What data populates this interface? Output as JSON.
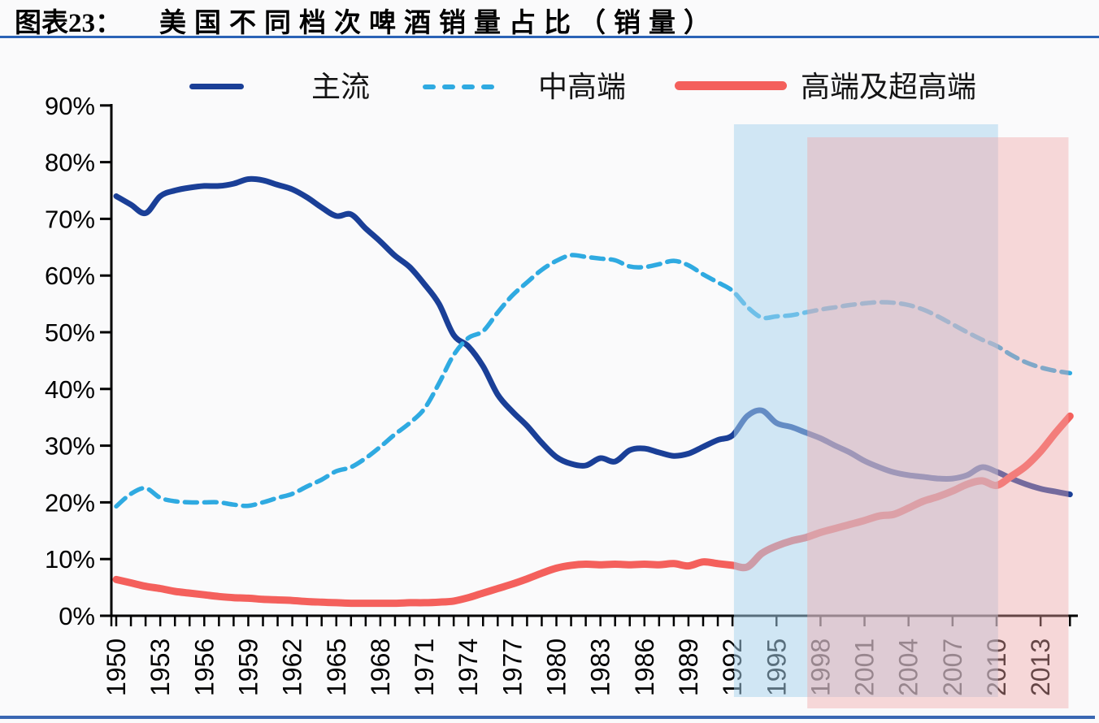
{
  "page": {
    "background": "#fafafb"
  },
  "header": {
    "prefix": "图表23：",
    "title": "美国不同档次啤酒销量占比（销量）",
    "underline_color": "#2b63b6"
  },
  "footer": {
    "rule_color": "#3a67b3"
  },
  "chart_data": {
    "type": "line",
    "title": "美国不同档次啤酒销量占比（销量）",
    "xlabel": "",
    "ylabel": "",
    "ylim": [
      0,
      90
    ],
    "grid": false,
    "legend_position": "top",
    "x_start": 1950,
    "x_end": 2015,
    "x_ticks": [
      1950,
      1953,
      1956,
      1959,
      1962,
      1965,
      1968,
      1971,
      1974,
      1977,
      1980,
      1983,
      1986,
      1989,
      1992,
      1995,
      1998,
      2001,
      2004,
      2007,
      2010,
      2013
    ],
    "y_tick_labels": [
      "0%",
      "10%",
      "20%",
      "30%",
      "40%",
      "50%",
      "60%",
      "70%",
      "80%",
      "90%"
    ],
    "series": [
      {
        "key": "mainstream",
        "name": "主流",
        "color": "#1a3f97",
        "style": "solid",
        "stroke_width": 7,
        "values": [
          74,
          72.5,
          71,
          74,
          75,
          75.5,
          75.8,
          75.8,
          76.2,
          77,
          76.8,
          76,
          75.2,
          73.8,
          72,
          70.5,
          70.8,
          68.3,
          66,
          63.5,
          61.5,
          58.5,
          55,
          49.5,
          47.5,
          44,
          39,
          36,
          33.5,
          30.5,
          28,
          26.8,
          26.5,
          27.8,
          27.2,
          29.2,
          29.5,
          28.8,
          28.2,
          28.6,
          29.8,
          31,
          31.8,
          35.2,
          36.2,
          34,
          33.3,
          32.3,
          31.3,
          30,
          28.8,
          27.3,
          26.2,
          25.3,
          24.8,
          24.5,
          24.2,
          24.2,
          24.8,
          26.2,
          25.4,
          24.2,
          23.2,
          22.4,
          21.9,
          21.4
        ]
      },
      {
        "key": "mid-high-end",
        "name": "中高端",
        "color": "#2faae1",
        "style": "dashed",
        "stroke_width": 5.5,
        "values": [
          19.3,
          21.5,
          22.5,
          20.8,
          20.2,
          20,
          20,
          20,
          19.6,
          19.4,
          20,
          20.8,
          21.5,
          22.8,
          24,
          25.5,
          26.2,
          27.8,
          29.8,
          32,
          34,
          36.5,
          41,
          46,
          49,
          50.2,
          53.5,
          56.5,
          58.8,
          61,
          62.6,
          63.6,
          63.3,
          63,
          62.7,
          61.6,
          61.5,
          62,
          62.6,
          61.8,
          60.2,
          58.8,
          57.3,
          54.5,
          52.6,
          52.8,
          53,
          53.5,
          54,
          54.4,
          54.8,
          55.1,
          55.3,
          55.2,
          54.8,
          54,
          52.8,
          51.4,
          50,
          48.7,
          47.6,
          46,
          44.7,
          43.8,
          43.2,
          42.8
        ]
      },
      {
        "key": "premium-super-premium",
        "name": "高端及超高端",
        "color": "#f4605c",
        "style": "solid",
        "stroke_width": 9,
        "values": [
          6.4,
          5.8,
          5.2,
          4.8,
          4.3,
          4,
          3.7,
          3.4,
          3.2,
          3.1,
          2.9,
          2.8,
          2.7,
          2.5,
          2.4,
          2.3,
          2.2,
          2.2,
          2.2,
          2.2,
          2.3,
          2.3,
          2.4,
          2.6,
          3.2,
          4,
          4.8,
          5.6,
          6.5,
          7.5,
          8.4,
          8.9,
          9.1,
          9,
          9.1,
          9,
          9.1,
          9,
          9.2,
          8.8,
          9.5,
          9.2,
          8.9,
          8.6,
          11,
          12.3,
          13.2,
          13.8,
          14.7,
          15.4,
          16.1,
          16.8,
          17.6,
          17.9,
          19,
          20.2,
          21,
          22,
          23.2,
          23.8,
          23,
          24.6,
          26.4,
          29,
          32.2,
          35.2
        ]
      }
    ],
    "highlight_regions": [
      {
        "key": "blue-band",
        "from": 1992.1,
        "to": 2010.1,
        "color": "#a9d3ee",
        "opacity": 0.52
      },
      {
        "key": "pink-band",
        "from": 1997.1,
        "to": 2014.9,
        "color": "#f1a6a6",
        "opacity": 0.42
      }
    ]
  }
}
